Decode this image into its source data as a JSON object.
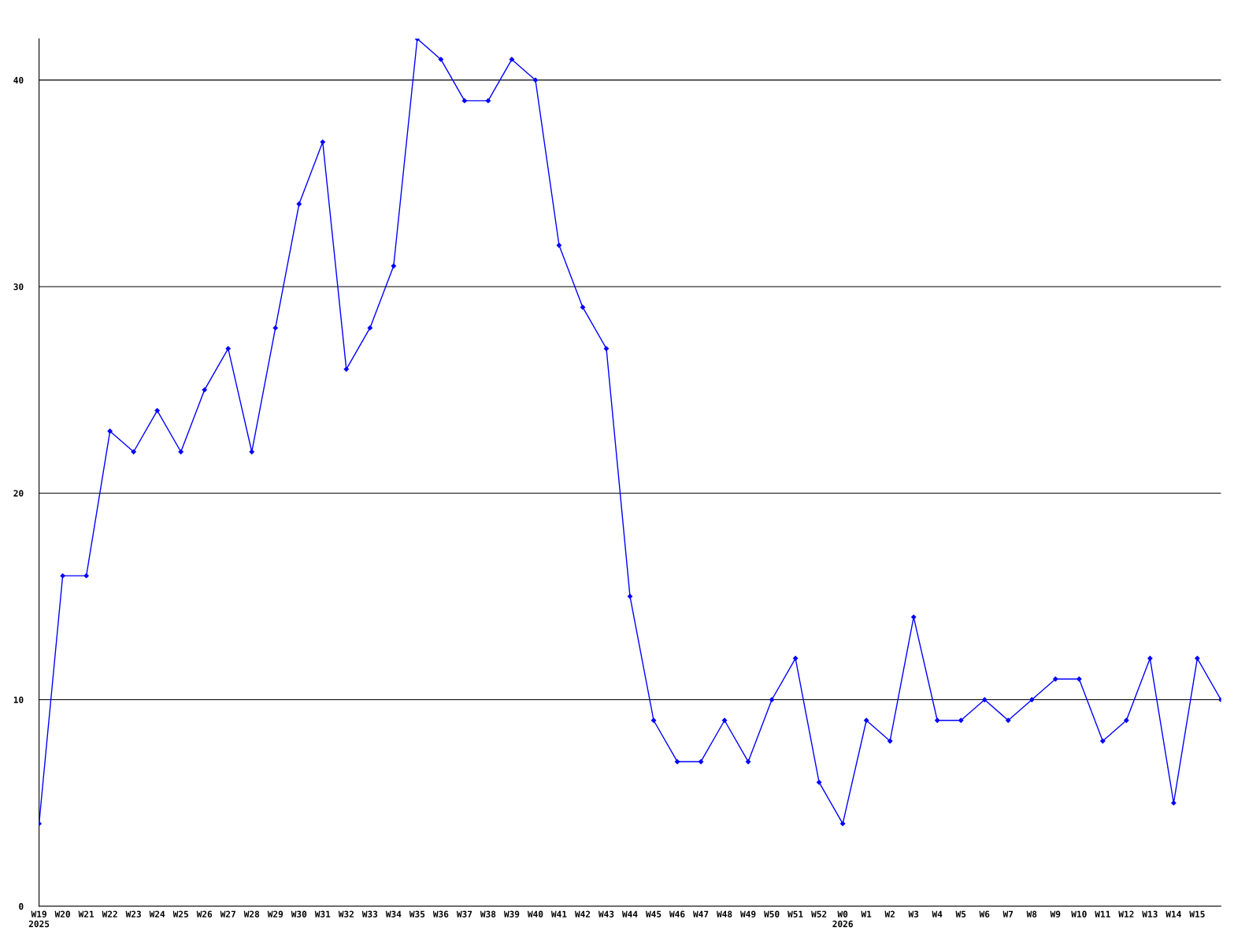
{
  "chart_data": {
    "type": "line",
    "categories": [
      "W19\n2025",
      "W20",
      "W21",
      "W22",
      "W23",
      "W24",
      "W25",
      "W26",
      "W27",
      "W28",
      "W29",
      "W30",
      "W31",
      "W32",
      "W33",
      "W34",
      "W35",
      "W36",
      "W37",
      "W38",
      "W39",
      "W40",
      "W41",
      "W42",
      "W43",
      "W44",
      "W45",
      "W46",
      "W47",
      "W48",
      "W49",
      "W50",
      "W51",
      "W52",
      "W0\n2026",
      "W1",
      "W2",
      "W3",
      "W4",
      "W5",
      "W6",
      "W7",
      "W8",
      "W9",
      "W10",
      "W11",
      "W12",
      "W13",
      "W14",
      "W15",
      null
    ],
    "series": [
      {
        "color": "#0000ff",
        "values": [
          4,
          16,
          16,
          23,
          22,
          24,
          22,
          25,
          27,
          22,
          28,
          34,
          37,
          26,
          28,
          31,
          42,
          41,
          39,
          39,
          41,
          40,
          32,
          29,
          27,
          15,
          9,
          7,
          7,
          9,
          7,
          10,
          12,
          6,
          4,
          9,
          8,
          14,
          9,
          9,
          10,
          9,
          10,
          11,
          11,
          8,
          9,
          12,
          5,
          12,
          10
        ]
      }
    ],
    "ylim": [
      0,
      42
    ],
    "yticks": [
      0,
      10,
      20,
      30,
      40
    ],
    "grid": "y",
    "marker": "diamond",
    "line_style": "solid"
  }
}
